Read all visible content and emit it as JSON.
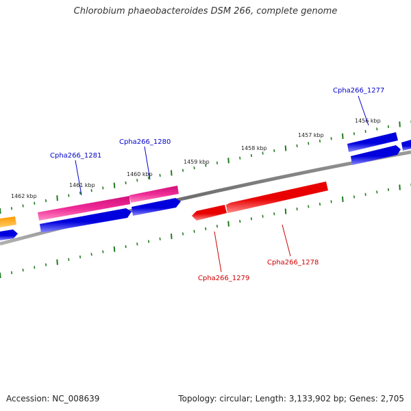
{
  "title": "Chlorobium phaeobacteroides DSM 266, complete genome",
  "footer": {
    "accession": "Accession: NC_008639",
    "topology": "Topology: circular; Length: 3,133,902 bp; Genes: 2,705"
  },
  "colors": {
    "backbone": "#7a7a7a",
    "tick": "#1e7a1e",
    "forward_label": "#0000cc",
    "reverse_label": "#cc0000",
    "blue_gene": "#0000dd",
    "pink_gene": "#e8188c",
    "red_gene": "#e80000",
    "orange_gene": "#ff9900"
  },
  "scale": {
    "unit": "kbp",
    "labels": [
      "1456 kbp",
      "1457 kbp",
      "1458 kbp",
      "1459 kbp",
      "1460 kbp",
      "1461 kbp",
      "1462 kbp"
    ]
  },
  "genes": [
    {
      "name": "Cpha266_1277",
      "strand": "forward",
      "color": "blue"
    },
    {
      "name": "Cpha266_1278",
      "strand": "reverse",
      "color": "red"
    },
    {
      "name": "Cpha266_1279",
      "strand": "reverse",
      "color": "red"
    },
    {
      "name": "Cpha266_1280",
      "strand": "forward",
      "color": "pink"
    },
    {
      "name": "Cpha266_1281",
      "strand": "forward",
      "color": "pink"
    }
  ]
}
